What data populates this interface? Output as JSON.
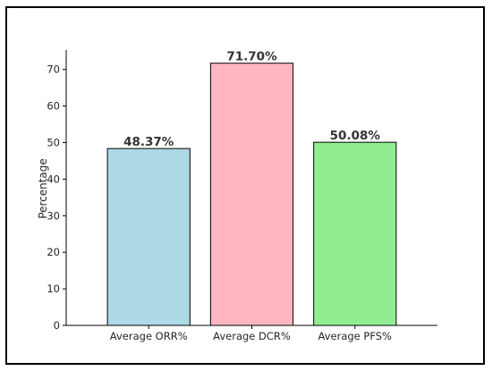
{
  "chart_data": {
    "type": "bar",
    "categories": [
      "Average ORR%",
      "Average DCR%",
      "Average PFS%"
    ],
    "values": [
      48.37,
      71.7,
      50.08
    ],
    "value_labels": [
      "48.37%",
      "71.70%",
      "50.08%"
    ],
    "colors": [
      "#add8e6",
      "#ffb6c1",
      "#90ee90"
    ],
    "title": "",
    "xlabel": "",
    "ylabel": "Percentage",
    "ylim": [
      0,
      75.3
    ],
    "yticks": [
      0,
      10,
      20,
      30,
      40,
      50,
      60,
      70
    ],
    "grid": false
  }
}
